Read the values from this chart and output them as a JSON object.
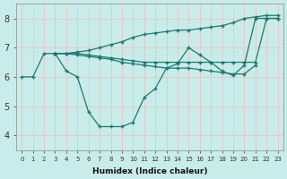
{
  "xlabel": "Humidex (Indice chaleur)",
  "background_color": "#c8ece9",
  "grid_color": "#d0d0d0",
  "line_color": "#1a7a6e",
  "xlim": [
    -0.5,
    23.5
  ],
  "ylim": [
    3.5,
    8.5
  ],
  "yticks": [
    4,
    5,
    6,
    7,
    8
  ],
  "xticks": [
    0,
    1,
    2,
    3,
    4,
    5,
    6,
    7,
    8,
    9,
    10,
    11,
    12,
    13,
    14,
    15,
    16,
    17,
    18,
    19,
    20,
    21,
    22,
    23
  ],
  "lines": [
    {
      "x": [
        0,
        1,
        2,
        3,
        4,
        5,
        6,
        7,
        8,
        9,
        10,
        11,
        12,
        13,
        14,
        15,
        16,
        17,
        18,
        19,
        20,
        21,
        22,
        23
      ],
      "y": [
        6.0,
        6.0,
        6.8,
        6.8,
        6.2,
        6.0,
        4.8,
        4.3,
        4.3,
        4.3,
        4.45,
        5.3,
        5.6,
        6.3,
        6.45,
        7.0,
        6.75,
        6.5,
        6.2,
        6.05,
        6.4,
        8.0,
        8.0,
        8.0
      ]
    },
    {
      "x": [
        3,
        4,
        5,
        6,
        7,
        8,
        9,
        10,
        11,
        12,
        13,
        14,
        15,
        16,
        17,
        18,
        19,
        20,
        21,
        22,
        23
      ],
      "y": [
        6.8,
        6.8,
        6.85,
        6.9,
        7.0,
        7.1,
        7.2,
        7.35,
        7.45,
        7.5,
        7.55,
        7.6,
        7.6,
        7.65,
        7.7,
        7.75,
        7.85,
        8.0,
        8.05,
        8.1,
        8.1
      ]
    },
    {
      "x": [
        3,
        4,
        5,
        6,
        7,
        8,
        9,
        10,
        11,
        12,
        13,
        14,
        15,
        16,
        17,
        18,
        19,
        20,
        21,
        22,
        23
      ],
      "y": [
        6.8,
        6.8,
        6.8,
        6.75,
        6.7,
        6.65,
        6.6,
        6.55,
        6.5,
        6.5,
        6.5,
        6.5,
        6.5,
        6.5,
        6.5,
        6.5,
        6.5,
        6.5,
        6.5,
        8.0,
        8.0
      ]
    },
    {
      "x": [
        3,
        4,
        5,
        6,
        7,
        8,
        9,
        10,
        11,
        12,
        13,
        14,
        15,
        16,
        17,
        18,
        19,
        20,
        21
      ],
      "y": [
        6.8,
        6.8,
        6.75,
        6.7,
        6.65,
        6.6,
        6.5,
        6.45,
        6.4,
        6.35,
        6.3,
        6.3,
        6.3,
        6.25,
        6.2,
        6.15,
        6.1,
        6.1,
        6.4
      ]
    }
  ]
}
